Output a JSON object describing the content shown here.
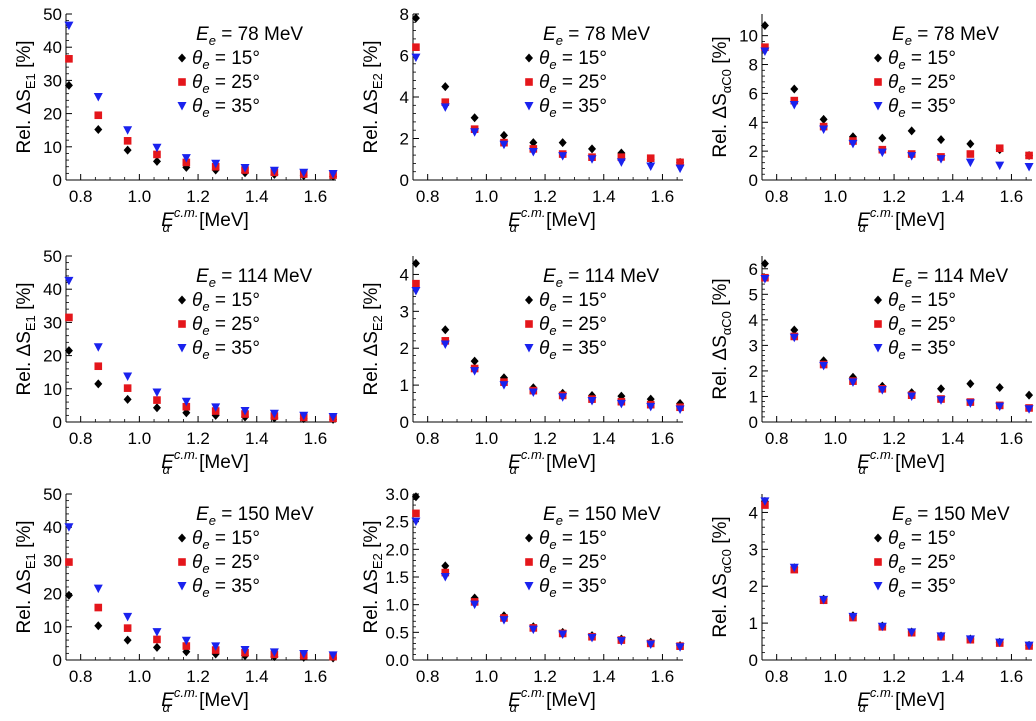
{
  "chart_data": [
    {
      "type": "scatter",
      "title": "",
      "xlabel": {
        "base": "E",
        "sub": "α",
        "sup": "c.m.",
        "unit": " [MeV]"
      },
      "ylabel": {
        "pre": "Rel. ΔS",
        "sub": "E1",
        "post": " [%]"
      },
      "xlim": [
        0.75,
        1.67
      ],
      "ylim": [
        0,
        50
      ],
      "xticks": [
        0.8,
        1.0,
        1.2,
        1.4,
        1.6
      ],
      "xtick_labels": [
        "0.8",
        "1.0",
        "1.2",
        "1.4",
        "1.6"
      ],
      "yticks": [
        0,
        10,
        20,
        30,
        40,
        50
      ],
      "ytick_labels": [
        "0",
        "10",
        "20",
        "30",
        "40",
        "50"
      ],
      "legend_title": {
        "var": "E",
        "sub": "e",
        "text": " = 78 MeV"
      },
      "x": [
        0.76,
        0.86,
        0.96,
        1.06,
        1.16,
        1.26,
        1.36,
        1.46,
        1.56,
        1.66
      ],
      "series": [
        {
          "name": {
            "var": "θ",
            "sub": "e",
            "text": " = 15°"
          },
          "values": [
            28.5,
            15.2,
            9.0,
            5.6,
            3.8,
            3.0,
            2.2,
            1.7,
            1.3,
            1.1
          ]
        },
        {
          "name": {
            "var": "θ",
            "sub": "e",
            "text": " = 25°"
          },
          "values": [
            36.5,
            19.5,
            11.8,
            7.7,
            5.3,
            4.0,
            3.0,
            2.3,
            1.8,
            1.5
          ]
        },
        {
          "name": {
            "var": "θ",
            "sub": "e",
            "text": " = 35°"
          },
          "values": [
            46.5,
            25.0,
            15.0,
            9.7,
            6.6,
            4.9,
            3.6,
            2.8,
            2.2,
            1.8
          ]
        }
      ]
    },
    {
      "type": "scatter",
      "title": "",
      "xlabel": {
        "base": "E",
        "sub": "α",
        "sup": "c.m.",
        "unit": " [MeV]"
      },
      "ylabel": {
        "pre": "Rel. ΔS",
        "sub": "E2",
        "post": " [%]"
      },
      "xlim": [
        0.75,
        1.67
      ],
      "ylim": [
        0,
        8
      ],
      "xticks": [
        0.8,
        1.0,
        1.2,
        1.4,
        1.6
      ],
      "xtick_labels": [
        "0.8",
        "1.0",
        "1.2",
        "1.4",
        "1.6"
      ],
      "yticks": [
        0,
        2,
        4,
        6,
        8
      ],
      "ytick_labels": [
        "0",
        "2",
        "4",
        "6",
        "8"
      ],
      "legend_title": {
        "var": "E",
        "sub": "e",
        "text": " = 78 MeV"
      },
      "x": [
        0.76,
        0.86,
        0.96,
        1.06,
        1.16,
        1.26,
        1.36,
        1.46,
        1.56,
        1.66
      ],
      "series": [
        {
          "name": {
            "var": "θ",
            "sub": "e",
            "text": " = 15°"
          },
          "values": [
            7.8,
            4.5,
            3.0,
            2.15,
            1.8,
            1.8,
            1.5,
            1.3,
            1.0,
            0.85
          ]
        },
        {
          "name": {
            "var": "θ",
            "sub": "e",
            "text": " = 25°"
          },
          "values": [
            6.4,
            3.75,
            2.45,
            1.8,
            1.5,
            1.25,
            1.1,
            1.1,
            1.05,
            0.85
          ]
        },
        {
          "name": {
            "var": "θ",
            "sub": "e",
            "text": " = 35°"
          },
          "values": [
            5.9,
            3.5,
            2.3,
            1.7,
            1.35,
            1.15,
            1.0,
            0.85,
            0.65,
            0.55
          ]
        }
      ]
    },
    {
      "type": "scatter",
      "title": "",
      "xlabel": {
        "base": "E",
        "sub": "α",
        "sup": "c.m.",
        "unit": " [MeV]"
      },
      "ylabel": {
        "pre": "Rel. ΔS",
        "sub": "αC0",
        "post": " [%]"
      },
      "xlim": [
        0.75,
        1.67
      ],
      "ylim": [
        0,
        11.5
      ],
      "xticks": [
        0.8,
        1.0,
        1.2,
        1.4,
        1.6
      ],
      "xtick_labels": [
        "0.8",
        "1.0",
        "1.2",
        "1.4",
        "1.6"
      ],
      "yticks": [
        0,
        2,
        4,
        6,
        8,
        10
      ],
      "ytick_labels": [
        "0",
        "2",
        "4",
        "6",
        "8",
        "10"
      ],
      "legend_title": {
        "var": "E",
        "sub": "e",
        "text": " = 78 MeV"
      },
      "x": [
        0.76,
        0.86,
        0.96,
        1.06,
        1.16,
        1.26,
        1.36,
        1.46,
        1.56,
        1.66
      ],
      "series": [
        {
          "name": {
            "var": "θ",
            "sub": "e",
            "text": " = 15°"
          },
          "values": [
            10.7,
            6.3,
            4.2,
            3.0,
            2.9,
            3.4,
            2.8,
            2.5,
            2.1,
            1.7
          ]
        },
        {
          "name": {
            "var": "θ",
            "sub": "e",
            "text": " = 25°"
          },
          "values": [
            9.2,
            5.5,
            3.7,
            2.7,
            2.1,
            1.8,
            1.6,
            1.8,
            2.2,
            1.7
          ]
        },
        {
          "name": {
            "var": "θ",
            "sub": "e",
            "text": " = 35°"
          },
          "values": [
            8.9,
            5.2,
            3.5,
            2.5,
            1.9,
            1.65,
            1.45,
            1.2,
            1.0,
            0.9
          ]
        }
      ]
    },
    {
      "type": "scatter",
      "title": "",
      "xlabel": {
        "base": "E",
        "sub": "α",
        "sup": "c.m.",
        "unit": " [MeV]"
      },
      "ylabel": {
        "pre": "Rel. ΔS",
        "sub": "E1",
        "post": " [%]"
      },
      "xlim": [
        0.75,
        1.67
      ],
      "ylim": [
        0,
        50
      ],
      "xticks": [
        0.8,
        1.0,
        1.2,
        1.4,
        1.6
      ],
      "xtick_labels": [
        "0.8",
        "1.0",
        "1.2",
        "1.4",
        "1.6"
      ],
      "yticks": [
        0,
        10,
        20,
        30,
        40,
        50
      ],
      "ytick_labels": [
        "0",
        "10",
        "20",
        "30",
        "40",
        "50"
      ],
      "legend_title": {
        "var": "E",
        "sub": "e",
        "text": " = 114 MeV"
      },
      "x": [
        0.76,
        0.86,
        0.96,
        1.06,
        1.16,
        1.26,
        1.36,
        1.46,
        1.56,
        1.66
      ],
      "series": [
        {
          "name": {
            "var": "θ",
            "sub": "e",
            "text": " = 15°"
          },
          "values": [
            21.5,
            11.5,
            6.8,
            4.3,
            2.8,
            2.0,
            1.5,
            1.2,
            1.0,
            0.8
          ]
        },
        {
          "name": {
            "var": "θ",
            "sub": "e",
            "text": " = 25°"
          },
          "values": [
            31.5,
            16.8,
            10.2,
            6.6,
            4.6,
            3.3,
            2.4,
            1.8,
            1.4,
            1.1
          ]
        },
        {
          "name": {
            "var": "θ",
            "sub": "e",
            "text": " = 35°"
          },
          "values": [
            42.5,
            22.5,
            13.7,
            8.9,
            6.1,
            4.4,
            3.3,
            2.5,
            1.9,
            1.5
          ]
        }
      ]
    },
    {
      "type": "scatter",
      "title": "",
      "xlabel": {
        "base": "E",
        "sub": "α",
        "sup": "c.m.",
        "unit": " [MeV]"
      },
      "ylabel": {
        "pre": "Rel. ΔS",
        "sub": "E2",
        "post": " [%]"
      },
      "xlim": [
        0.75,
        1.67
      ],
      "ylim": [
        0,
        4.5
      ],
      "xticks": [
        0.8,
        1.0,
        1.2,
        1.4,
        1.6
      ],
      "xtick_labels": [
        "0.8",
        "1.0",
        "1.2",
        "1.4",
        "1.6"
      ],
      "yticks": [
        0,
        1,
        2,
        3,
        4
      ],
      "ytick_labels": [
        "0",
        "1",
        "2",
        "3",
        "4"
      ],
      "legend_title": {
        "var": "E",
        "sub": "e",
        "text": " = 114 MeV"
      },
      "x": [
        0.76,
        0.86,
        0.96,
        1.06,
        1.16,
        1.26,
        1.36,
        1.46,
        1.56,
        1.66
      ],
      "series": [
        {
          "name": {
            "var": "θ",
            "sub": "e",
            "text": " = 15°"
          },
          "values": [
            4.3,
            2.5,
            1.65,
            1.2,
            0.93,
            0.78,
            0.72,
            0.7,
            0.62,
            0.5
          ]
        },
        {
          "name": {
            "var": "θ",
            "sub": "e",
            "text": " = 25°"
          },
          "values": [
            3.75,
            2.2,
            1.45,
            1.08,
            0.85,
            0.72,
            0.62,
            0.55,
            0.47,
            0.4
          ]
        },
        {
          "name": {
            "var": "θ",
            "sub": "e",
            "text": " = 35°"
          },
          "values": [
            3.55,
            2.1,
            1.38,
            1.0,
            0.8,
            0.67,
            0.57,
            0.49,
            0.41,
            0.34
          ]
        }
      ]
    },
    {
      "type": "scatter",
      "title": "",
      "xlabel": {
        "base": "E",
        "sub": "α",
        "sup": "c.m.",
        "unit": " [MeV]"
      },
      "ylabel": {
        "pre": "Rel. ΔS",
        "sub": "αC0",
        "post": " [%]"
      },
      "xlim": [
        0.75,
        1.67
      ],
      "ylim": [
        0,
        6.5
      ],
      "xticks": [
        0.8,
        1.0,
        1.2,
        1.4,
        1.6
      ],
      "xtick_labels": [
        "0.8",
        "1.0",
        "1.2",
        "1.4",
        "1.6"
      ],
      "yticks": [
        0,
        1,
        2,
        3,
        4,
        5,
        6
      ],
      "ytick_labels": [
        "0",
        "1",
        "2",
        "3",
        "4",
        "5",
        "6"
      ],
      "legend_title": {
        "var": "E",
        "sub": "e",
        "text": " = 114 MeV"
      },
      "x": [
        0.76,
        0.86,
        0.96,
        1.06,
        1.16,
        1.26,
        1.36,
        1.46,
        1.56,
        1.66
      ],
      "series": [
        {
          "name": {
            "var": "θ",
            "sub": "e",
            "text": " = 15°"
          },
          "values": [
            6.2,
            3.6,
            2.4,
            1.75,
            1.4,
            1.15,
            1.3,
            1.5,
            1.35,
            1.05
          ]
        },
        {
          "name": {
            "var": "θ",
            "sub": "e",
            "text": " = 25°"
          },
          "values": [
            5.65,
            3.35,
            2.25,
            1.6,
            1.3,
            1.05,
            0.9,
            0.78,
            0.65,
            0.55
          ]
        },
        {
          "name": {
            "var": "θ",
            "sub": "e",
            "text": " = 35°"
          },
          "values": [
            5.6,
            3.3,
            2.2,
            1.55,
            1.25,
            1.0,
            0.85,
            0.73,
            0.6,
            0.5
          ]
        }
      ]
    },
    {
      "type": "scatter",
      "title": "",
      "xlabel": {
        "base": "E",
        "sub": "α",
        "sup": "c.m.",
        "unit": " [MeV]"
      },
      "ylabel": {
        "pre": "Rel. ΔS",
        "sub": "E1",
        "post": " [%]"
      },
      "xlim": [
        0.75,
        1.67
      ],
      "ylim": [
        0,
        50
      ],
      "xticks": [
        0.8,
        1.0,
        1.2,
        1.4,
        1.6
      ],
      "xtick_labels": [
        "0.8",
        "1.0",
        "1.2",
        "1.4",
        "1.6"
      ],
      "yticks": [
        0,
        10,
        20,
        30,
        40,
        50
      ],
      "ytick_labels": [
        "0",
        "10",
        "20",
        "30",
        "40",
        "50"
      ],
      "legend_title": {
        "var": "E",
        "sub": "e",
        "text": " = 150 MeV"
      },
      "x": [
        0.76,
        0.86,
        0.96,
        1.06,
        1.16,
        1.26,
        1.36,
        1.46,
        1.56,
        1.66
      ],
      "series": [
        {
          "name": {
            "var": "θ",
            "sub": "e",
            "text": " = 15°"
          },
          "values": [
            19.5,
            10.3,
            6.0,
            3.8,
            2.5,
            1.8,
            1.3,
            1.0,
            0.8,
            0.6
          ]
        },
        {
          "name": {
            "var": "θ",
            "sub": "e",
            "text": " = 25°"
          },
          "values": [
            29.5,
            15.8,
            9.6,
            6.2,
            4.2,
            3.0,
            2.2,
            1.7,
            1.3,
            1.0
          ]
        },
        {
          "name": {
            "var": "θ",
            "sub": "e",
            "text": " = 35°"
          },
          "values": [
            40.0,
            21.5,
            13.0,
            8.4,
            5.8,
            4.1,
            3.0,
            2.3,
            1.8,
            1.4
          ]
        }
      ]
    },
    {
      "type": "scatter",
      "title": "",
      "xlabel": {
        "base": "E",
        "sub": "α",
        "sup": "c.m.",
        "unit": " [MeV]"
      },
      "ylabel": {
        "pre": "Rel. ΔS",
        "sub": "E2",
        "post": " [%]"
      },
      "xlim": [
        0.75,
        1.67
      ],
      "ylim": [
        0,
        3.0
      ],
      "xticks": [
        0.8,
        1.0,
        1.2,
        1.4,
        1.6
      ],
      "xtick_labels": [
        "0.8",
        "1.0",
        "1.2",
        "1.4",
        "1.6"
      ],
      "yticks": [
        0,
        0.5,
        1.0,
        1.5,
        2.0,
        2.5,
        3.0
      ],
      "ytick_labels": [
        "0.0",
        "0.5",
        "1.0",
        "1.5",
        "2.0",
        "2.5",
        "3.0"
      ],
      "legend_title": {
        "var": "E",
        "sub": "e",
        "text": " = 150 MeV"
      },
      "x": [
        0.76,
        0.86,
        0.96,
        1.06,
        1.16,
        1.26,
        1.36,
        1.46,
        1.56,
        1.66
      ],
      "series": [
        {
          "name": {
            "var": "θ",
            "sub": "e",
            "text": " = 15°"
          },
          "values": [
            2.95,
            1.7,
            1.12,
            0.8,
            0.6,
            0.5,
            0.44,
            0.38,
            0.32,
            0.26
          ]
        },
        {
          "name": {
            "var": "θ",
            "sub": "e",
            "text": " = 25°"
          },
          "values": [
            2.65,
            1.58,
            1.05,
            0.76,
            0.58,
            0.48,
            0.42,
            0.36,
            0.3,
            0.25
          ]
        },
        {
          "name": {
            "var": "θ",
            "sub": "e",
            "text": " = 35°"
          },
          "values": [
            2.5,
            1.5,
            1.0,
            0.72,
            0.55,
            0.46,
            0.4,
            0.34,
            0.28,
            0.23
          ]
        }
      ]
    },
    {
      "type": "scatter",
      "title": "",
      "xlabel": {
        "base": "E",
        "sub": "α",
        "sup": "c.m.",
        "unit": " [MeV]"
      },
      "ylabel": {
        "pre": "Rel. ΔS",
        "sub": "αC0",
        "post": " [%]"
      },
      "xlim": [
        0.75,
        1.67
      ],
      "ylim": [
        0,
        4.5
      ],
      "xticks": [
        0.8,
        1.0,
        1.2,
        1.4,
        1.6
      ],
      "xtick_labels": [
        "0.8",
        "1.0",
        "1.2",
        "1.4",
        "1.6"
      ],
      "yticks": [
        0,
        1,
        2,
        3,
        4
      ],
      "ytick_labels": [
        "0",
        "1",
        "2",
        "3",
        "4"
      ],
      "legend_title": {
        "var": "E",
        "sub": "e",
        "text": " = 150 MeV"
      },
      "x": [
        0.76,
        0.86,
        0.96,
        1.06,
        1.16,
        1.26,
        1.36,
        1.46,
        1.56,
        1.66
      ],
      "series": [
        {
          "name": {
            "var": "θ",
            "sub": "e",
            "text": " = 15°"
          },
          "values": [
            4.3,
            2.5,
            1.65,
            1.2,
            0.92,
            0.76,
            0.65,
            0.57,
            0.48,
            0.4
          ]
        },
        {
          "name": {
            "var": "θ",
            "sub": "e",
            "text": " = 25°"
          },
          "values": [
            4.2,
            2.45,
            1.62,
            1.15,
            0.9,
            0.74,
            0.63,
            0.55,
            0.46,
            0.38
          ]
        },
        {
          "name": {
            "var": "θ",
            "sub": "e",
            "text": " = 35°"
          },
          "values": [
            4.3,
            2.5,
            1.63,
            1.17,
            0.9,
            0.75,
            0.64,
            0.56,
            0.47,
            0.39
          ]
        }
      ]
    }
  ],
  "style": {
    "series_colors": [
      "#000000",
      "#e4161b",
      "#1a22ee"
    ],
    "series_markers": [
      "diamond-marker",
      "square-marker",
      "triangle-down-marker"
    ],
    "axis_color": "#000000"
  }
}
